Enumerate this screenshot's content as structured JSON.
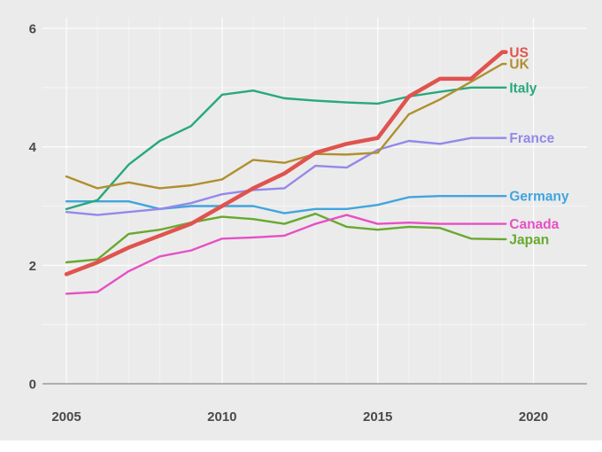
{
  "chart_data": {
    "type": "line",
    "title": "",
    "x": [
      2005,
      2006,
      2007,
      2008,
      2009,
      2010,
      2011,
      2012,
      2013,
      2014,
      2015,
      2016,
      2017,
      2018,
      2019
    ],
    "series": [
      {
        "name": "US",
        "color": "#e0534e",
        "line_width": 4.5,
        "values": [
          1.85,
          2.05,
          2.3,
          2.5,
          2.7,
          3.0,
          3.3,
          3.55,
          3.9,
          4.05,
          4.15,
          4.85,
          5.15,
          5.15,
          5.6
        ]
      },
      {
        "name": "UK",
        "color": "#b08f2e",
        "line_width": 2.4,
        "values": [
          3.5,
          3.3,
          3.4,
          3.3,
          3.35,
          3.45,
          3.78,
          3.73,
          3.88,
          3.87,
          3.9,
          4.55,
          4.8,
          5.1,
          5.4
        ]
      },
      {
        "name": "Italy",
        "color": "#27a87d",
        "line_width": 2.4,
        "values": [
          2.95,
          3.1,
          3.7,
          4.1,
          4.35,
          4.88,
          4.95,
          4.82,
          4.78,
          4.75,
          4.73,
          4.85,
          4.93,
          5.0,
          5.0
        ]
      },
      {
        "name": "France",
        "color": "#9289ea",
        "line_width": 2.4,
        "values": [
          2.9,
          2.85,
          2.9,
          2.95,
          3.05,
          3.2,
          3.27,
          3.3,
          3.68,
          3.65,
          3.95,
          4.1,
          4.05,
          4.15,
          4.15
        ]
      },
      {
        "name": "Germany",
        "color": "#41a5dd",
        "line_width": 2.4,
        "values": [
          3.08,
          3.08,
          3.08,
          2.95,
          3.0,
          3.0,
          3.0,
          2.88,
          2.95,
          2.95,
          3.02,
          3.15,
          3.17,
          3.17,
          3.17
        ]
      },
      {
        "name": "Canada",
        "color": "#e650c4",
        "line_width": 2.4,
        "values": [
          1.52,
          1.55,
          1.9,
          2.15,
          2.25,
          2.45,
          2.47,
          2.5,
          2.7,
          2.85,
          2.7,
          2.72,
          2.7,
          2.7,
          2.7
        ]
      },
      {
        "name": "Japan",
        "color": "#68a92f",
        "line_width": 2.4,
        "values": [
          2.05,
          2.1,
          2.53,
          2.6,
          2.72,
          2.82,
          2.78,
          2.7,
          2.87,
          2.65,
          2.6,
          2.65,
          2.63,
          2.45,
          2.44
        ]
      }
    ],
    "x_ticks": [
      "2005",
      "2010",
      "2015",
      "2020"
    ],
    "y_ticks": [
      "0",
      "2",
      "4",
      "6"
    ],
    "xlim": [
      2004.2,
      2021.7
    ],
    "ylim": [
      0,
      6.2
    ],
    "grid": "on",
    "legend_position": "end-of-line-labels"
  },
  "styles": {
    "plot_background": "#ebebeb",
    "axis_line_color": "#999999",
    "tick_text_color": "#4a4a4a",
    "grid_color": "#ffffff"
  }
}
